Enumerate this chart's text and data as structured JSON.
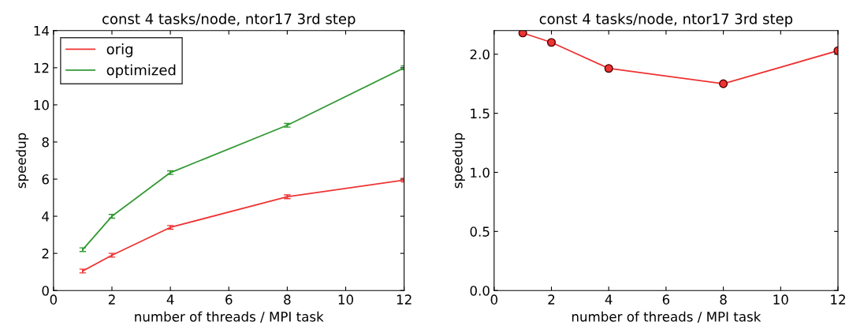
{
  "chart_data": [
    {
      "type": "line",
      "title": "const 4 tasks/node, ntor17 3rd step",
      "xlabel": "number of threads / MPI task",
      "ylabel": "speedup",
      "x": [
        1,
        2,
        4,
        8,
        12
      ],
      "xlim": [
        0,
        12
      ],
      "xticks": [
        0,
        2,
        4,
        6,
        8,
        10,
        12
      ],
      "ylim": [
        0,
        14
      ],
      "yticks": [
        0,
        2,
        4,
        6,
        8,
        10,
        12,
        14
      ],
      "legend": "top left",
      "grid": false,
      "marker": "none",
      "series": [
        {
          "name": "orig",
          "color": "#ee3333",
          "values": [
            1.05,
            1.9,
            3.4,
            5.05,
            5.95
          ],
          "errors": [
            0.1,
            0.1,
            0.1,
            0.1,
            0.1
          ]
        },
        {
          "name": "optimized",
          "color": "#339933",
          "values": [
            2.2,
            4.0,
            6.35,
            8.9,
            12.0
          ],
          "errors": [
            0.1,
            0.1,
            0.1,
            0.1,
            0.1
          ]
        }
      ]
    },
    {
      "type": "line",
      "title": "const 4 tasks/node, ntor17 3rd step",
      "xlabel": "number of threads / MPI task",
      "ylabel": "speedup",
      "x": [
        1,
        2,
        4,
        8,
        12
      ],
      "xlim": [
        0,
        12
      ],
      "xticks": [
        0,
        2,
        4,
        6,
        8,
        10,
        12
      ],
      "ylim": [
        0,
        2.2
      ],
      "yticks": [
        {
          "value": 0,
          "label": "0.0"
        },
        0.5,
        {
          "value": 1,
          "label": "1.0"
        },
        1.5,
        {
          "value": 2,
          "label": "2.0"
        }
      ],
      "grid": false,
      "marker": "circle",
      "series": [
        {
          "color": "#ee3333",
          "values": [
            2.18,
            2.1,
            1.88,
            1.75,
            2.03
          ]
        }
      ]
    }
  ]
}
